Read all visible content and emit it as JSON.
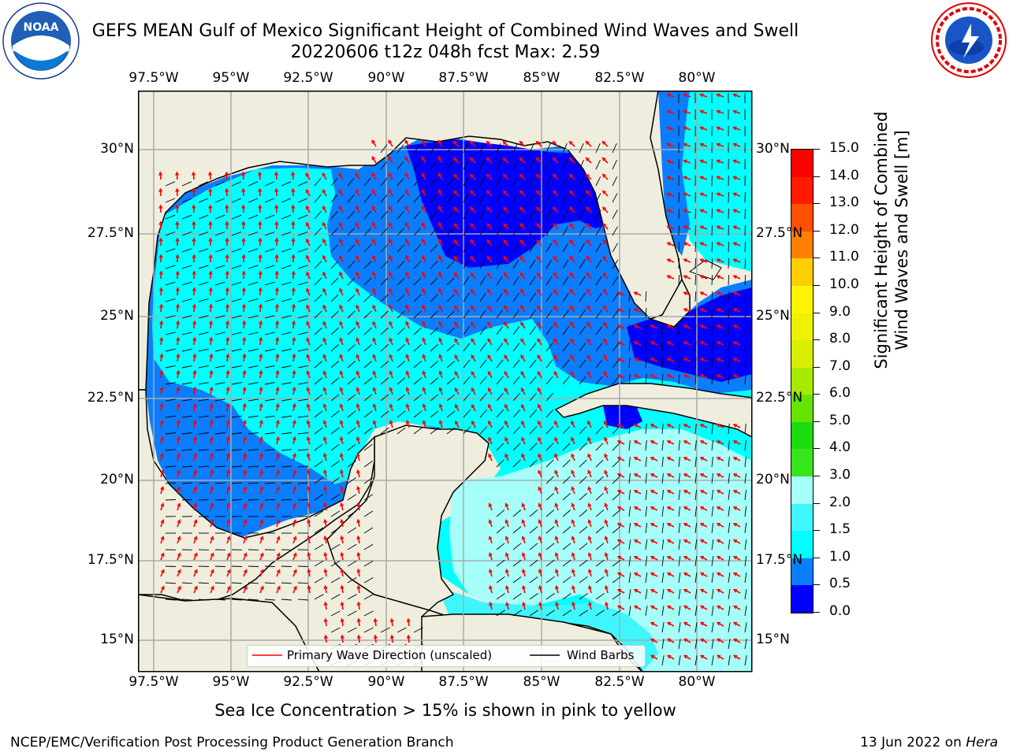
{
  "header": {
    "title_line1": "GEFS MEAN Gulf of Mexico Significant Height of Combined Wind Waves and Swell",
    "title_line2": "20220606 t12z 048h fcst   Max: 2.59"
  },
  "logos": {
    "left": {
      "text": "NOAA",
      "ring_text": "NATIONAL OCEANIC AND ATMOSPHERIC ADMINISTRATION · U.S. DEPARTMENT OF COMMERCE"
    },
    "right": {
      "ring_text": "NATIONAL WEATHER SERVICE"
    }
  },
  "map": {
    "lon_labels": [
      "97.5°W",
      "95°W",
      "92.5°W",
      "90°W",
      "87.5°W",
      "85°W",
      "82.5°W",
      "80°W"
    ],
    "lat_labels": [
      "30°N",
      "27.5°N",
      "25°N",
      "22.5°N",
      "20°N",
      "17.5°N",
      "15°N"
    ],
    "land_color": "#efedde",
    "ocean_colors": {
      "0.0-0.5": "#0000ff",
      "0.5-1.0": "#0b7dff",
      "1.0-1.5": "#00ffff",
      "1.5-2.0": "#3ff6ff",
      "2.0-3.0": "#a6fff8"
    },
    "max_value": 2.59
  },
  "colorbar": {
    "ticks": [
      "15.0",
      "14.0",
      "13.0",
      "12.0",
      "11.0",
      "10.0",
      "9.0",
      "8.0",
      "7.0",
      "6.0",
      "5.0",
      "4.0",
      "3.0",
      "2.0",
      "1.5",
      "1.0",
      "0.5",
      "0.0"
    ],
    "colors": [
      "#0000ff",
      "#0b7dff",
      "#00ffff",
      "#3ff6ff",
      "#a6fff8",
      "#55f579",
      "#37e51b",
      "#1cdc0e",
      "#64e400",
      "#a7e900",
      "#d7ee00",
      "#eef100",
      "#fff500",
      "#ffce00",
      "#ffa600",
      "#ff7f00",
      "#ff4f00",
      "#ff1a00",
      "#ff0000"
    ],
    "label_line1": "Significant Height of Combined",
    "label_line2": "Wind Waves and Swell [m]"
  },
  "legend": {
    "wave_dir": "Primary Wave Direction (unscaled)",
    "wind_barbs": "Wind Barbs",
    "wave_color": "#ff0000",
    "barb_color": "#000000"
  },
  "note": "Sea Ice Concentration > 15% is shown in pink to yellow",
  "footer": {
    "left": "NCEP/EMC/Verification Post Processing Product Generation Branch",
    "right_prefix": "13 Jun 2022 on ",
    "right_italic": "Hera"
  }
}
